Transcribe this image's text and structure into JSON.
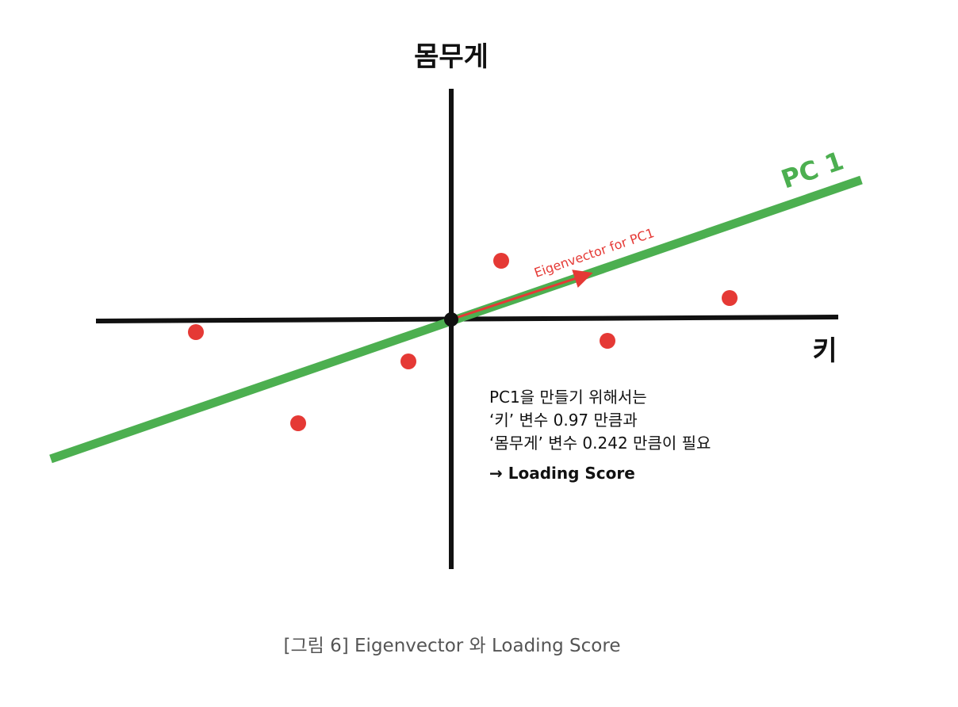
{
  "diagram": {
    "y_axis_label": "몸무게",
    "x_axis_label": "키",
    "pc_line_label": "PC 1",
    "eigenvector_label": "Eigenvector for PC1",
    "colors": {
      "axes": "#111111",
      "pc_line": "#4caf50",
      "points": "#e53935",
      "eigenvector": "#e53935"
    }
  },
  "note": {
    "line1": "PC1을 만들기 위해서는",
    "line2": "‘키’ 변수 0.97 만큼과",
    "line3": "‘몸무게’ 변수 0.242 만큼이 필요",
    "loading": "→ Loading Score"
  },
  "caption": "[그림 6] Eigenvector 와 Loading Score"
}
